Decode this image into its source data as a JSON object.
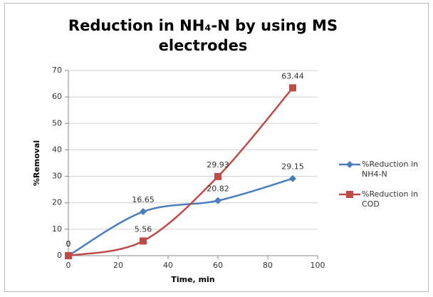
{
  "chart_data": {
    "type": "line",
    "title": "Reduction in NH₄-N by using MS electrodes",
    "x_label": "Time, min",
    "y_label": "%Removal",
    "x": [
      0,
      30,
      60,
      90
    ],
    "series": [
      {
        "name": "%Reduction in NH4-N",
        "color": "#4a7ebb",
        "marker": "diamond",
        "values": [
          0,
          16.65,
          20.82,
          29.15
        ]
      },
      {
        "name": "%Reduction in COD",
        "color": "#be4b48",
        "marker": "square",
        "values": [
          0,
          5.56,
          29.93,
          63.44
        ]
      }
    ],
    "xlim": [
      0,
      100
    ],
    "xticks": [
      0,
      20,
      40,
      60,
      80,
      100
    ],
    "ylim": [
      0,
      70
    ],
    "yticks": [
      0,
      10,
      20,
      30,
      40,
      50,
      60,
      70
    ],
    "grid": true,
    "legend": "right"
  }
}
